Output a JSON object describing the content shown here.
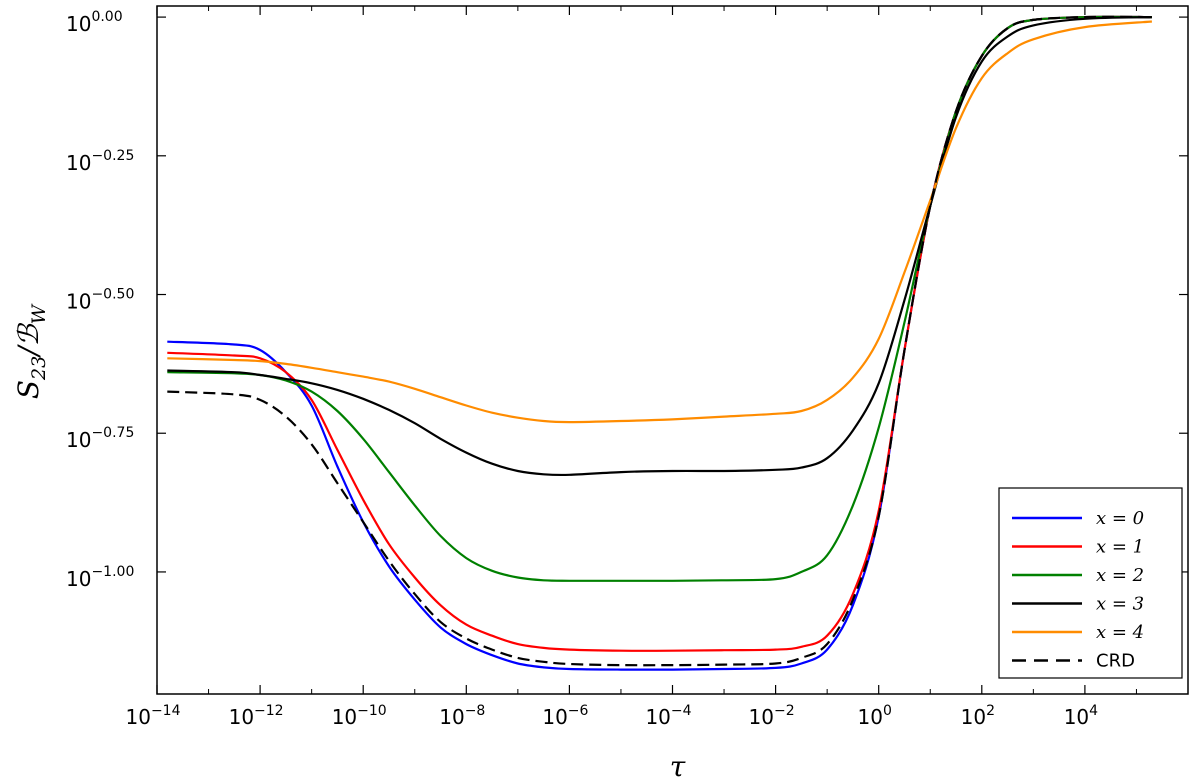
{
  "chart_data": {
    "type": "line",
    "xscale": "log",
    "yscale": "log",
    "xlim": [
      1e-14,
      1000000.0
    ],
    "ylim_log10": [
      -1.22,
      0.02
    ],
    "x_ticks": [
      {
        "base": "10",
        "exp": "−14"
      },
      {
        "base": "10",
        "exp": "−12"
      },
      {
        "base": "10",
        "exp": "−10"
      },
      {
        "base": "10",
        "exp": "−8"
      },
      {
        "base": "10",
        "exp": "−6"
      },
      {
        "base": "10",
        "exp": "−4"
      },
      {
        "base": "10",
        "exp": "−2"
      },
      {
        "base": "10",
        "exp": "0"
      },
      {
        "base": "10",
        "exp": "2"
      },
      {
        "base": "10",
        "exp": "4"
      }
    ],
    "y_ticks": [
      {
        "base": "10",
        "exp": "0.00"
      },
      {
        "base": "10",
        "exp": "−0.25"
      },
      {
        "base": "10",
        "exp": "−0.50"
      },
      {
        "base": "10",
        "exp": "−0.75"
      },
      {
        "base": "10",
        "exp": "−1.00"
      }
    ],
    "xlabel": "τ",
    "ylabel": "S23/ℬW",
    "legend_position": "lower-right",
    "grid": false,
    "series": [
      {
        "name": "x = 0",
        "color": "#0000ff",
        "dash": "solid",
        "x_log10": [
          -13.8,
          -12.5,
          -12,
          -11.5,
          -11,
          -10.5,
          -10,
          -9.5,
          -9,
          -8.5,
          -8,
          -7.5,
          -7,
          -6.5,
          -6,
          -5,
          -4,
          -3,
          -2,
          -1.5,
          -1,
          -0.5,
          0,
          0.5,
          1,
          1.5,
          2,
          2.5,
          3,
          4,
          5.3
        ],
        "y_log10": [
          -0.585,
          -0.59,
          -0.6,
          -0.64,
          -0.7,
          -0.81,
          -0.91,
          -0.99,
          -1.05,
          -1.1,
          -1.13,
          -1.15,
          -1.165,
          -1.172,
          -1.175,
          -1.176,
          -1.176,
          -1.175,
          -1.173,
          -1.165,
          -1.14,
          -1.06,
          -0.9,
          -0.6,
          -0.34,
          -0.17,
          -0.07,
          -0.02,
          -0.005,
          0.0,
          0.0
        ]
      },
      {
        "name": "x = 1",
        "color": "#ff0000",
        "dash": "solid",
        "x_log10": [
          -13.8,
          -12.5,
          -12,
          -11.5,
          -11,
          -10.5,
          -10,
          -9.5,
          -9,
          -8.5,
          -8,
          -7.5,
          -7,
          -6.5,
          -6,
          -5,
          -4,
          -3,
          -2,
          -1.5,
          -1,
          -0.5,
          0,
          0.5,
          1,
          1.5,
          2,
          2.5,
          3,
          4,
          5.3
        ],
        "y_log10": [
          -0.605,
          -0.61,
          -0.615,
          -0.64,
          -0.69,
          -0.78,
          -0.87,
          -0.95,
          -1.01,
          -1.06,
          -1.095,
          -1.115,
          -1.13,
          -1.137,
          -1.14,
          -1.142,
          -1.142,
          -1.141,
          -1.14,
          -1.135,
          -1.115,
          -1.04,
          -0.89,
          -0.6,
          -0.34,
          -0.17,
          -0.07,
          -0.02,
          -0.005,
          0.0,
          0.0
        ]
      },
      {
        "name": "x = 2",
        "color": "#008000",
        "dash": "solid",
        "x_log10": [
          -13.8,
          -12.5,
          -12,
          -11.5,
          -11,
          -10.5,
          -10,
          -9.5,
          -9,
          -8.5,
          -8,
          -7.5,
          -7,
          -6.5,
          -6,
          -5,
          -4,
          -3,
          -2,
          -1.5,
          -1,
          -0.5,
          0,
          0.5,
          1,
          1.5,
          2,
          2.5,
          3,
          4,
          5.3
        ],
        "y_log10": [
          -0.64,
          -0.642,
          -0.645,
          -0.655,
          -0.675,
          -0.71,
          -0.76,
          -0.82,
          -0.88,
          -0.935,
          -0.975,
          -0.998,
          -1.01,
          -1.015,
          -1.016,
          -1.016,
          -1.016,
          -1.015,
          -1.013,
          -1.0,
          -0.97,
          -0.88,
          -0.74,
          -0.55,
          -0.34,
          -0.17,
          -0.07,
          -0.02,
          -0.005,
          0.0,
          0.0
        ]
      },
      {
        "name": "x = 3",
        "color": "#000000",
        "dash": "solid",
        "x_log10": [
          -13.8,
          -12.5,
          -12,
          -11.5,
          -11,
          -10.5,
          -10,
          -9.5,
          -9,
          -8.5,
          -8,
          -7.5,
          -7,
          -6.5,
          -6,
          -5,
          -4,
          -3,
          -2,
          -1.5,
          -1,
          -0.5,
          0,
          0.5,
          1,
          1.5,
          2,
          2.5,
          3,
          4,
          5.3
        ],
        "y_log10": [
          -0.637,
          -0.64,
          -0.645,
          -0.652,
          -0.66,
          -0.672,
          -0.688,
          -0.708,
          -0.732,
          -0.76,
          -0.785,
          -0.805,
          -0.818,
          -0.824,
          -0.825,
          -0.82,
          -0.818,
          -0.818,
          -0.816,
          -0.812,
          -0.795,
          -0.745,
          -0.66,
          -0.51,
          -0.34,
          -0.18,
          -0.08,
          -0.035,
          -0.015,
          -0.003,
          0.0
        ]
      },
      {
        "name": "x = 4",
        "color": "#ff8c00",
        "dash": "solid",
        "x_log10": [
          -13.8,
          -12.5,
          -12,
          -11.5,
          -11,
          -10.5,
          -10,
          -9.5,
          -9,
          -8.5,
          -8,
          -7.5,
          -7,
          -6.5,
          -6,
          -5,
          -4,
          -3,
          -2,
          -1.5,
          -1,
          -0.5,
          0,
          0.5,
          1,
          1.5,
          2,
          2.5,
          3,
          4,
          5.3
        ],
        "y_log10": [
          -0.615,
          -0.618,
          -0.62,
          -0.625,
          -0.632,
          -0.64,
          -0.648,
          -0.657,
          -0.67,
          -0.685,
          -0.7,
          -0.713,
          -0.722,
          -0.728,
          -0.73,
          -0.728,
          -0.725,
          -0.72,
          -0.715,
          -0.71,
          -0.69,
          -0.65,
          -0.58,
          -0.46,
          -0.33,
          -0.2,
          -0.11,
          -0.065,
          -0.04,
          -0.018,
          -0.008
        ]
      },
      {
        "name": "CRD",
        "color": "#000000",
        "dash": "dashed",
        "x_log10": [
          -13.8,
          -12.5,
          -12,
          -11.5,
          -11,
          -10.5,
          -10,
          -9.5,
          -9,
          -8.5,
          -8,
          -7.5,
          -7,
          -6.5,
          -6,
          -5,
          -4,
          -3,
          -2,
          -1.5,
          -1,
          -0.5,
          0,
          0.5,
          1,
          1.5,
          2,
          2.5,
          3,
          4,
          5.3
        ],
        "y_log10": [
          -0.675,
          -0.68,
          -0.69,
          -0.72,
          -0.77,
          -0.84,
          -0.91,
          -0.98,
          -1.04,
          -1.09,
          -1.12,
          -1.14,
          -1.155,
          -1.162,
          -1.166,
          -1.168,
          -1.168,
          -1.167,
          -1.165,
          -1.155,
          -1.13,
          -1.05,
          -0.9,
          -0.6,
          -0.34,
          -0.17,
          -0.07,
          -0.02,
          -0.005,
          0.0,
          0.0
        ]
      }
    ]
  }
}
